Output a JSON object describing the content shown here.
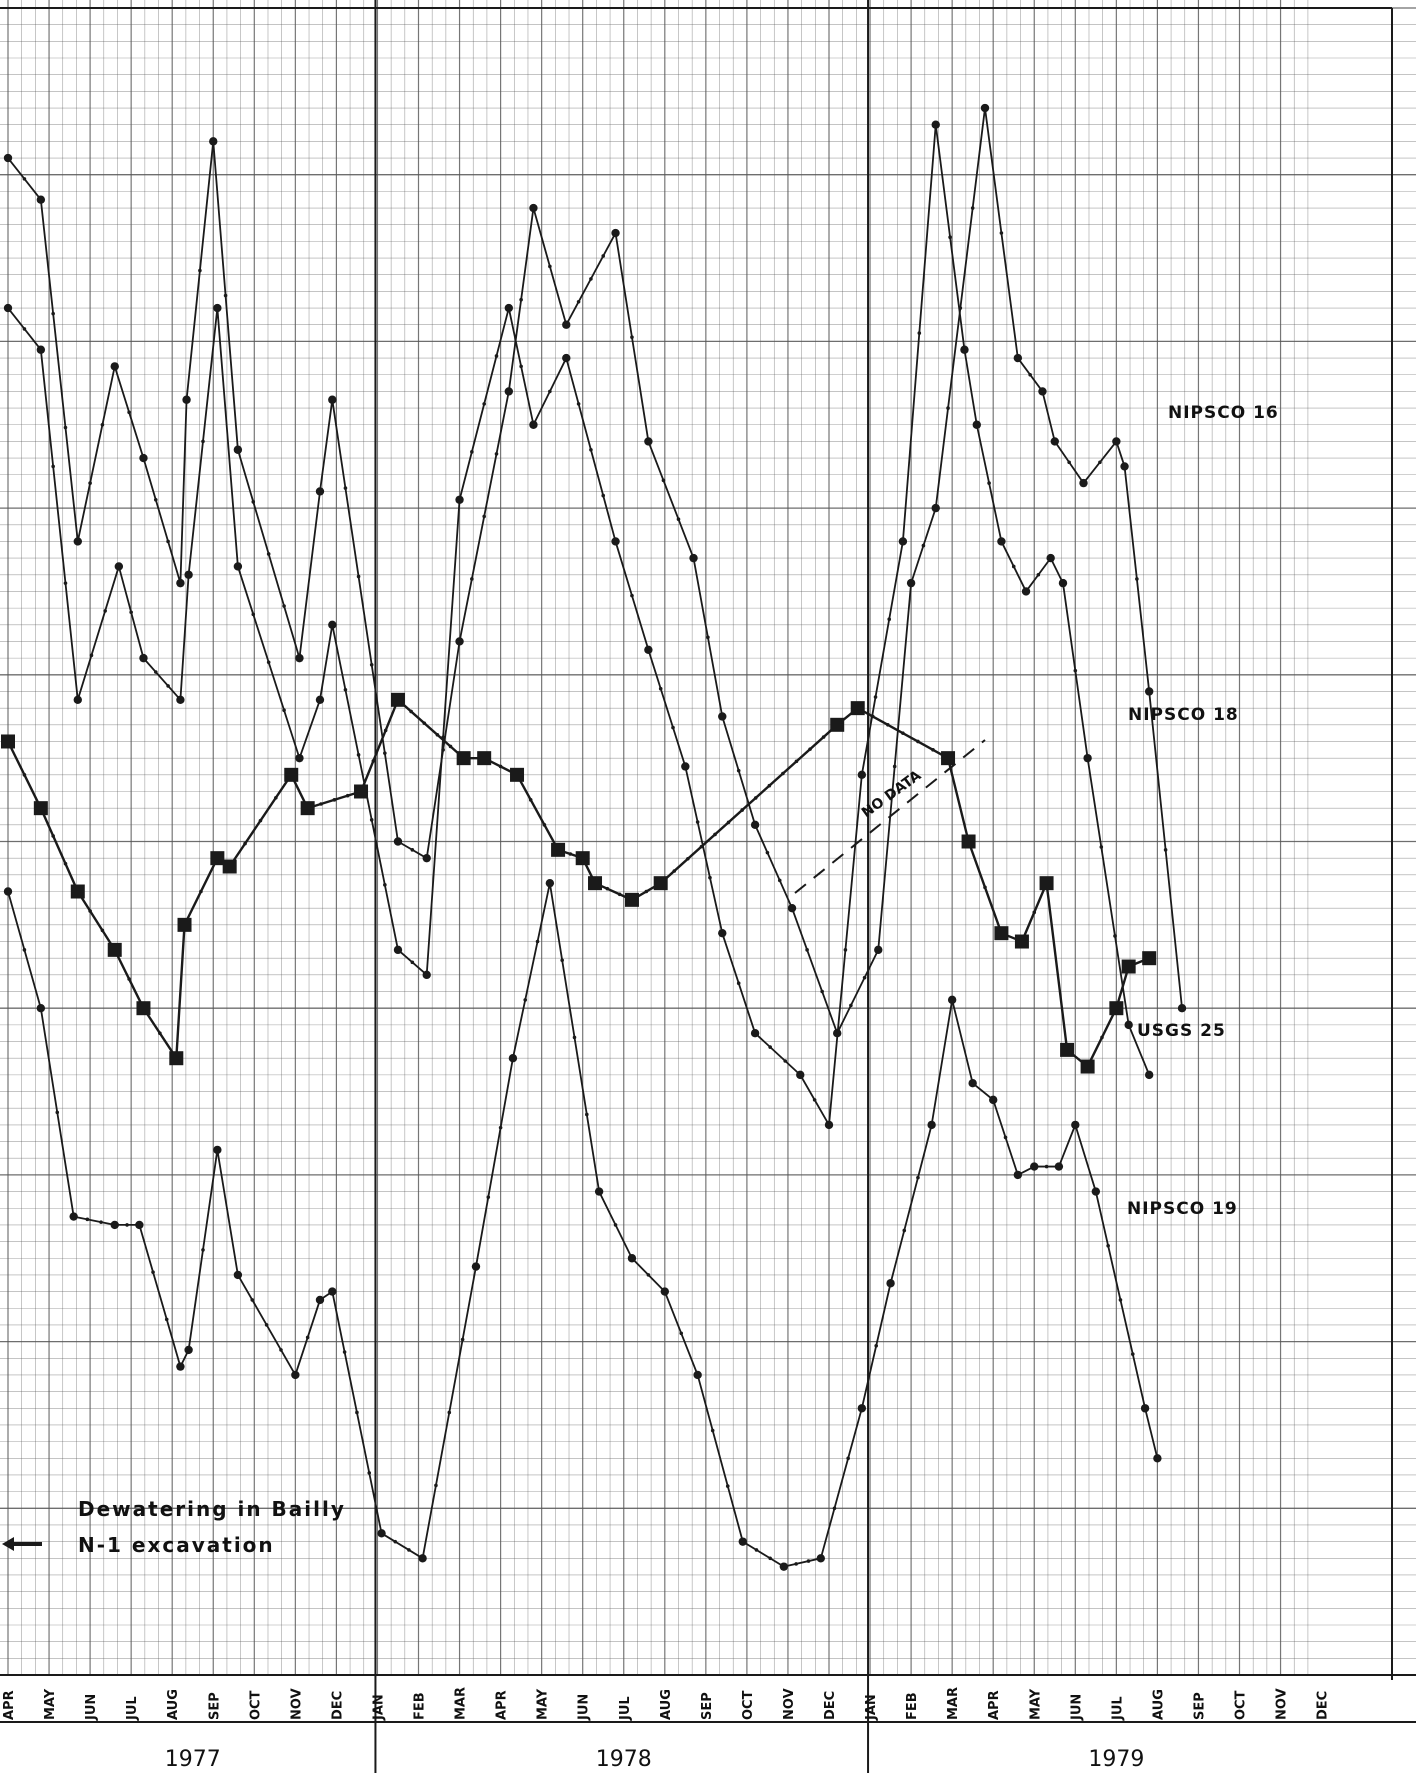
{
  "chart_data": {
    "type": "line",
    "title": "",
    "xlabel": "",
    "ylabel": "",
    "grid": true,
    "x": [
      "APR",
      "MAY",
      "JUN",
      "JUL",
      "AUG",
      "SEP",
      "OCT",
      "NOV",
      "DEC",
      "JAN",
      "FEB",
      "MAR",
      "APR",
      "MAY",
      "JUN",
      "JUL",
      "AUG",
      "SEP",
      "OCT",
      "NOV",
      "DEC",
      "JAN",
      "FEB",
      "MAR",
      "APR",
      "MAY",
      "JUN",
      "JUL",
      "AUG",
      "SEP",
      "OCT",
      "NOV",
      "DEC"
    ],
    "tick_labels": [
      "APR",
      "MAY",
      "JUN",
      "JUL",
      "AUG",
      "SEP",
      "OCT",
      "NOV",
      "DEC",
      "JAN",
      "FEB",
      "MAR",
      "APR",
      "MAY",
      "JUN",
      "JUL",
      "AUG",
      "SEP",
      "OCT",
      "NOV",
      "DEC",
      "JAN",
      "FEB",
      "MAR",
      "APR",
      "MAY",
      "JUN",
      "JUL",
      "AUG",
      "SEP",
      "OCT",
      "NOV",
      "DEC"
    ],
    "years": [
      {
        "label": "1977",
        "start": 0,
        "end": 9
      },
      {
        "label": "1978",
        "start": 9,
        "end": 21
      },
      {
        "label": "1979",
        "start": 21,
        "end": 33
      }
    ],
    "ylim": [
      0,
      100
    ],
    "series": [
      {
        "name": "NIPSCO 16",
        "marker": "dot",
        "points": [
          [
            0.0,
            91.0
          ],
          [
            0.8,
            88.5
          ],
          [
            1.7,
            68.0
          ],
          [
            2.6,
            78.5
          ],
          [
            3.3,
            73.0
          ],
          [
            4.2,
            65.5
          ],
          [
            4.35,
            76.5
          ],
          [
            5.0,
            92.0
          ],
          [
            5.6,
            73.5
          ],
          [
            7.1,
            61.0
          ],
          [
            7.6,
            71.0
          ],
          [
            7.9,
            76.5
          ],
          [
            9.5,
            50.0
          ],
          [
            10.2,
            49.0
          ],
          [
            11.0,
            62.0
          ],
          [
            12.2,
            77.0
          ],
          [
            12.8,
            88.0
          ],
          [
            13.6,
            81.0
          ],
          [
            14.8,
            86.5
          ],
          [
            15.6,
            74.0
          ],
          [
            16.7,
            67.0
          ],
          [
            17.4,
            57.5
          ],
          [
            18.2,
            51.0
          ],
          [
            19.1,
            46.0
          ],
          [
            20.2,
            38.5
          ],
          [
            21.2,
            43.5
          ],
          [
            22.0,
            65.5
          ],
          [
            22.6,
            70.0
          ],
          [
            23.8,
            94.0
          ],
          [
            24.6,
            79.0
          ],
          [
            25.2,
            77.0
          ],
          [
            25.5,
            74.0
          ],
          [
            26.2,
            71.5
          ],
          [
            27.0,
            74.0
          ],
          [
            27.2,
            72.5
          ],
          [
            27.8,
            59.0
          ],
          [
            28.6,
            40.0
          ]
        ]
      },
      {
        "name": "NIPSCO 18",
        "marker": "dot",
        "points": [
          [
            0.0,
            82.0
          ],
          [
            0.8,
            79.5
          ],
          [
            1.7,
            58.5
          ],
          [
            2.7,
            66.5
          ],
          [
            3.3,
            61.0
          ],
          [
            4.2,
            58.5
          ],
          [
            4.4,
            66.0
          ],
          [
            5.1,
            82.0
          ],
          [
            5.6,
            66.5
          ],
          [
            7.1,
            55.0
          ],
          [
            7.6,
            58.5
          ],
          [
            7.9,
            63.0
          ],
          [
            9.5,
            43.5
          ],
          [
            10.2,
            42.0
          ],
          [
            11.0,
            70.5
          ],
          [
            12.2,
            82.0
          ],
          [
            12.8,
            75.0
          ],
          [
            13.6,
            79.0
          ],
          [
            14.8,
            68.0
          ],
          [
            15.6,
            61.5
          ],
          [
            16.5,
            54.5
          ],
          [
            17.4,
            44.5
          ],
          [
            18.2,
            38.5
          ],
          [
            19.3,
            36.0
          ],
          [
            20.0,
            33.0
          ],
          [
            20.8,
            54.0
          ],
          [
            21.8,
            68.0
          ],
          [
            22.6,
            93.0
          ],
          [
            23.3,
            79.5
          ],
          [
            23.6,
            75.0
          ],
          [
            24.2,
            68.0
          ],
          [
            24.8,
            65.0
          ],
          [
            25.4,
            67.0
          ],
          [
            25.7,
            65.5
          ],
          [
            26.3,
            55.0
          ],
          [
            27.3,
            39.0
          ],
          [
            27.8,
            36.0
          ]
        ]
      },
      {
        "name": "USGS 25",
        "marker": "square",
        "points": [
          [
            0.0,
            56.0
          ],
          [
            0.8,
            52.0
          ],
          [
            1.7,
            47.0
          ],
          [
            2.6,
            43.5
          ],
          [
            3.3,
            40.0
          ],
          [
            4.1,
            37.0
          ],
          [
            4.3,
            45.0
          ],
          [
            5.1,
            49.0
          ],
          [
            5.4,
            48.5
          ],
          [
            6.9,
            54.0
          ],
          [
            7.3,
            52.0
          ],
          [
            8.6,
            53.0
          ],
          [
            9.5,
            58.5
          ],
          [
            11.1,
            55.0
          ],
          [
            11.6,
            55.0
          ],
          [
            12.4,
            54.0
          ],
          [
            13.4,
            49.5
          ],
          [
            14.0,
            49.0
          ],
          [
            14.3,
            47.5
          ],
          [
            15.2,
            46.5
          ],
          [
            15.9,
            47.5
          ],
          [
            20.2,
            57.0
          ],
          [
            20.7,
            58.0
          ],
          [
            22.9,
            55.0
          ],
          [
            23.4,
            50.0
          ],
          [
            24.2,
            44.5
          ],
          [
            24.7,
            44.0
          ],
          [
            25.3,
            47.5
          ],
          [
            25.8,
            37.5
          ],
          [
            26.3,
            36.5
          ],
          [
            27.0,
            40.0
          ],
          [
            27.3,
            42.5
          ],
          [
            27.8,
            43.0
          ]
        ]
      },
      {
        "name": "NIPSCO 19",
        "marker": "dot",
        "points": [
          [
            0.0,
            47.0
          ],
          [
            0.8,
            40.0
          ],
          [
            1.6,
            27.5
          ],
          [
            2.6,
            27.0
          ],
          [
            3.2,
            27.0
          ],
          [
            4.2,
            18.5
          ],
          [
            4.4,
            19.5
          ],
          [
            5.1,
            31.5
          ],
          [
            5.6,
            24.0
          ],
          [
            7.0,
            18.0
          ],
          [
            7.6,
            22.5
          ],
          [
            7.9,
            23.0
          ],
          [
            9.1,
            8.5
          ],
          [
            10.1,
            7.0
          ],
          [
            11.4,
            24.5
          ],
          [
            12.3,
            37.0
          ],
          [
            13.2,
            47.5
          ],
          [
            14.4,
            29.0
          ],
          [
            15.2,
            25.0
          ],
          [
            16.0,
            23.0
          ],
          [
            16.8,
            18.0
          ],
          [
            17.9,
            8.0
          ],
          [
            18.9,
            6.5
          ],
          [
            19.8,
            7.0
          ],
          [
            20.8,
            16.0
          ],
          [
            21.5,
            23.5
          ],
          [
            22.5,
            33.0
          ],
          [
            23.0,
            40.5
          ],
          [
            23.5,
            35.5
          ],
          [
            24.0,
            34.5
          ],
          [
            24.6,
            30.0
          ],
          [
            25.0,
            30.5
          ],
          [
            25.6,
            30.5
          ],
          [
            26.0,
            33.0
          ],
          [
            26.5,
            29.0
          ],
          [
            27.7,
            16.0
          ],
          [
            28.0,
            13.0
          ]
        ]
      }
    ],
    "annotations": {
      "series_labels": {
        "nipsco16": "NIPSCO 16",
        "nipsco18": "NIPSCO 18",
        "usgs25": "USGS 25",
        "nipsco19": "NIPSCO 19"
      },
      "no_data": "NO DATA",
      "note_line1": "Dewatering in Bailly",
      "note_line2": "N-1 excavation"
    },
    "colors": {
      "line": "#1a1a1a",
      "grid": "#555555",
      "background": "#ffffff"
    }
  }
}
